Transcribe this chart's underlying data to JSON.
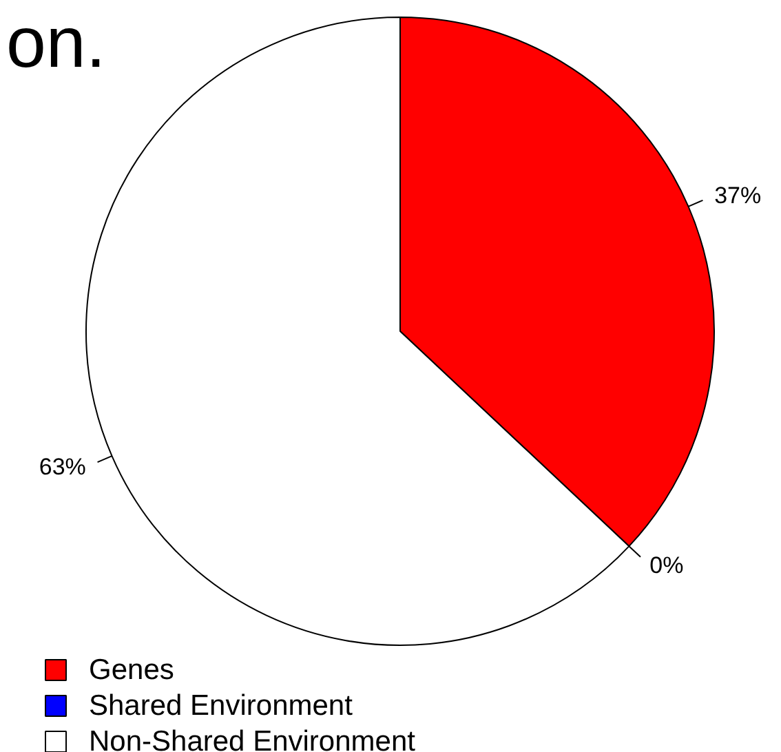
{
  "chart_data": {
    "type": "pie",
    "title": "on.",
    "categories": [
      "Genes",
      "Shared Environment",
      "Non-Shared Environment"
    ],
    "values": [
      37,
      0,
      63
    ],
    "colors": [
      "#ff0000",
      "#0000ff",
      "#ffffff"
    ],
    "value_labels": [
      "37%",
      "0%",
      "63%"
    ],
    "legend": "bottom left"
  }
}
